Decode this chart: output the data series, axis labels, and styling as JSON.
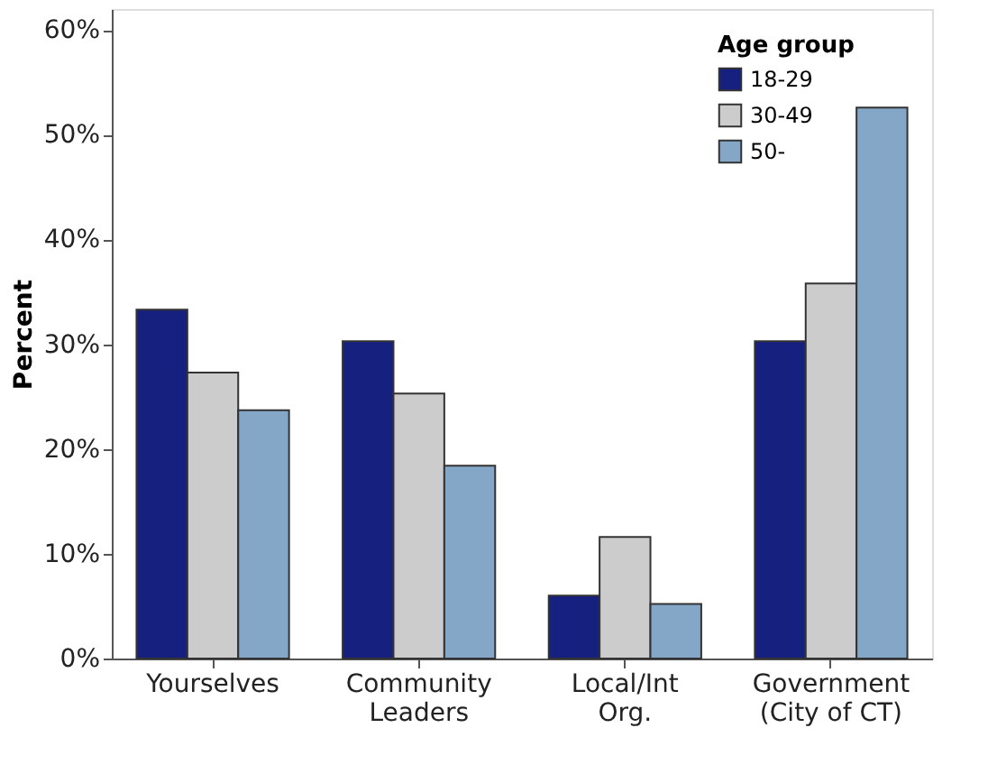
{
  "chart_data": {
    "type": "bar",
    "ylabel": "Percent",
    "legend_title": "Age group",
    "legend": "top right",
    "grid": false,
    "categories": [
      "Yourselves",
      "Community\nLeaders",
      "Local/Int\nOrg.",
      "Government\n(City of CT)"
    ],
    "series": [
      {
        "name": "18-29",
        "color": "#16217f",
        "values": [
          33.3,
          30.3,
          6.0,
          30.3
        ]
      },
      {
        "name": "30-49",
        "color": "#cccccc",
        "values": [
          27.3,
          25.3,
          11.6,
          35.8
        ]
      },
      {
        "name": "50-",
        "color": "#84a7c8",
        "values": [
          23.7,
          18.4,
          5.2,
          52.6
        ]
      }
    ],
    "ylim": [
      0,
      62
    ],
    "yticks": [
      {
        "value": 0,
        "label": "0%"
      },
      {
        "value": 10,
        "label": "10%"
      },
      {
        "value": 20,
        "label": "20%"
      },
      {
        "value": 30,
        "label": "30%"
      },
      {
        "value": 40,
        "label": "40%"
      },
      {
        "value": 50,
        "label": "50%"
      },
      {
        "value": 60,
        "label": "60%"
      }
    ]
  }
}
